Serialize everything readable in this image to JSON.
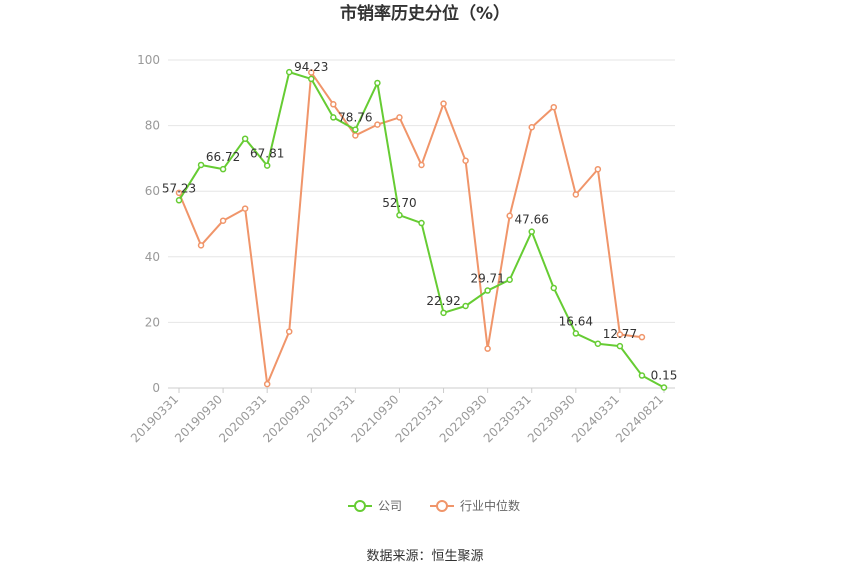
{
  "chart_data": {
    "type": "line",
    "title": "市销率历史分位（%）",
    "source": "数据来源：恒生聚源",
    "ylim": [
      0,
      100
    ],
    "yticks": [
      0,
      20,
      40,
      60,
      80,
      100
    ],
    "grid": true,
    "legend_placement": "bottom",
    "x_tick_labels": [
      "20190331",
      "20190930",
      "20200331",
      "20200930",
      "20210331",
      "20210930",
      "20220331",
      "20220930",
      "20230331",
      "20230930",
      "20240331",
      "20240821"
    ],
    "series": [
      {
        "name": "公司",
        "color": "#66cc33",
        "values": [
          57.23,
          68.0,
          66.72,
          76.0,
          67.81,
          96.3,
          94.23,
          82.5,
          78.76,
          93.0,
          52.7,
          50.3,
          22.92,
          25.0,
          29.71,
          33.0,
          47.66,
          30.5,
          16.64,
          13.5,
          12.77,
          3.8,
          0.15
        ]
      },
      {
        "name": "行业中位数",
        "color": "#f0956a",
        "values": [
          59.5,
          43.5,
          51.0,
          54.7,
          1.2,
          17.2,
          96.2,
          86.5,
          77.0,
          80.3,
          82.5,
          68.0,
          86.7,
          69.3,
          12.0,
          52.5,
          79.5,
          85.6,
          59.0,
          66.7,
          16.3,
          15.5,
          null
        ]
      }
    ],
    "data_labels": [
      {
        "series": 0,
        "index": 0,
        "text": "57.23"
      },
      {
        "series": 0,
        "index": 2,
        "text": "66.72"
      },
      {
        "series": 0,
        "index": 4,
        "text": "67.81"
      },
      {
        "series": 0,
        "index": 6,
        "text": "94.23"
      },
      {
        "series": 0,
        "index": 8,
        "text": "78.76"
      },
      {
        "series": 0,
        "index": 10,
        "text": "52.70"
      },
      {
        "series": 0,
        "index": 12,
        "text": "22.92"
      },
      {
        "series": 0,
        "index": 14,
        "text": "29.71"
      },
      {
        "series": 0,
        "index": 16,
        "text": "47.66"
      },
      {
        "series": 0,
        "index": 18,
        "text": "16.64"
      },
      {
        "series": 0,
        "index": 20,
        "text": "12.77"
      },
      {
        "series": 0,
        "index": 22,
        "text": "0.15"
      }
    ]
  }
}
